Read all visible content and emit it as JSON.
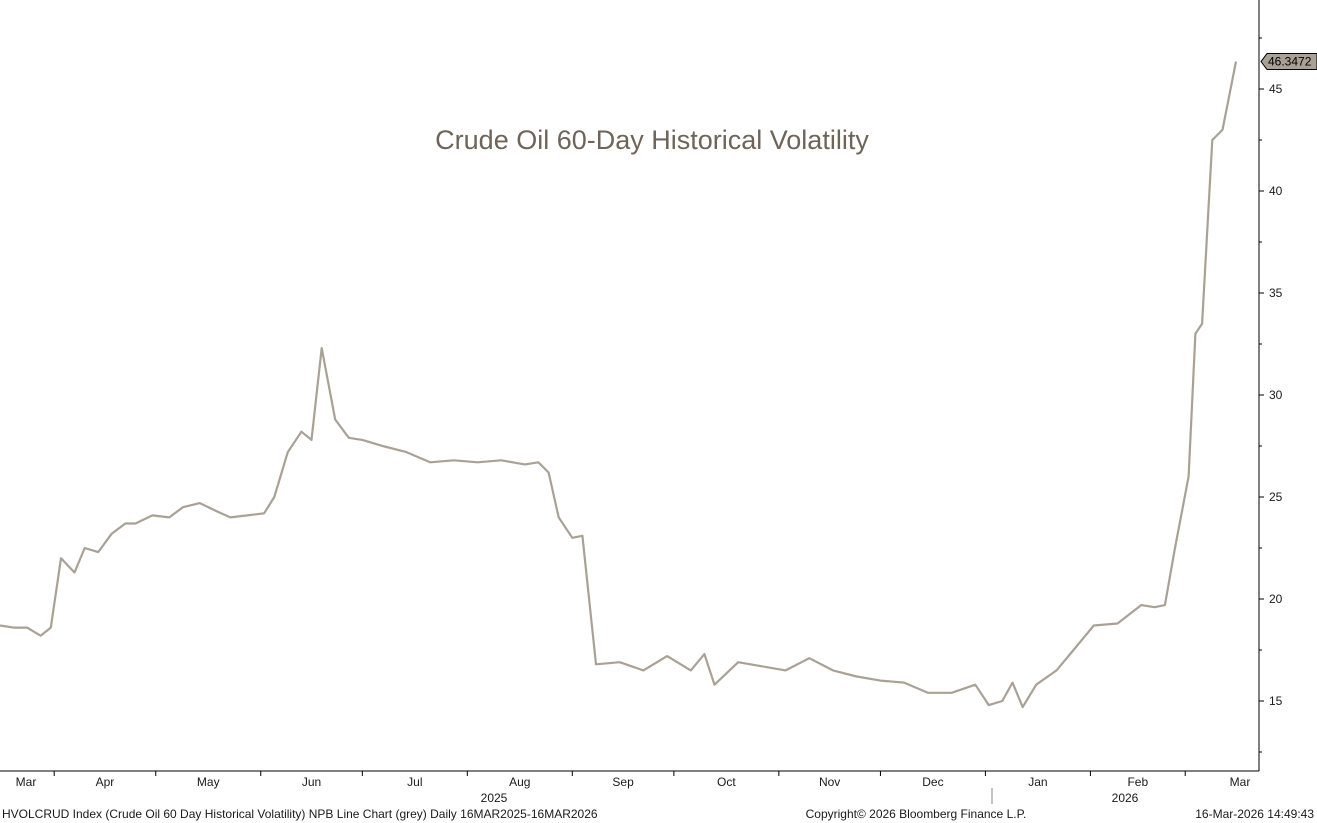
{
  "chart_data": {
    "type": "line",
    "title": "Crude Oil 60-Day Historical Volatility",
    "ylim": [
      11.5,
      47.5
    ],
    "yticks": [
      15,
      20,
      25,
      30,
      35,
      40,
      45
    ],
    "y_tick_labels": [
      "15",
      "20",
      "25",
      "30",
      "35",
      "40",
      "45"
    ],
    "grid": false,
    "x_tick_labels": [
      "Mar",
      "Apr",
      "May",
      "Jun",
      "Jul",
      "Aug",
      "Sep",
      "Oct",
      "Nov",
      "Dec",
      "Jan",
      "Feb",
      "Mar"
    ],
    "year_labels": [
      "2025",
      "2026"
    ],
    "last_value_label": "46.3472",
    "line_color": "#aaa196",
    "series": [
      {
        "x": [
          "2025-03-16",
          "2025-03-20",
          "2025-03-24",
          "2025-03-28",
          "2025-03-31",
          "2025-04-03",
          "2025-04-07",
          "2025-04-10",
          "2025-04-14",
          "2025-04-18",
          "2025-04-22",
          "2025-04-25",
          "2025-04-30",
          "2025-05-05",
          "2025-05-09",
          "2025-05-14",
          "2025-05-19",
          "2025-05-23",
          "2025-05-28",
          "2025-06-02",
          "2025-06-05",
          "2025-06-09",
          "2025-06-13",
          "2025-06-16",
          "2025-06-19",
          "2025-06-23",
          "2025-06-27",
          "2025-07-01",
          "2025-07-07",
          "2025-07-14",
          "2025-07-21",
          "2025-07-28",
          "2025-08-04",
          "2025-08-11",
          "2025-08-18",
          "2025-08-22",
          "2025-08-25",
          "2025-08-28",
          "2025-09-01",
          "2025-09-04",
          "2025-09-08",
          "2025-09-15",
          "2025-09-22",
          "2025-09-29",
          "2025-10-06",
          "2025-10-10",
          "2025-10-13",
          "2025-10-20",
          "2025-10-27",
          "2025-11-03",
          "2025-11-10",
          "2025-11-17",
          "2025-11-24",
          "2025-12-01",
          "2025-12-08",
          "2025-12-15",
          "2025-12-22",
          "2025-12-29",
          "2026-01-02",
          "2026-01-06",
          "2026-01-09",
          "2026-01-12",
          "2026-01-16",
          "2026-01-22",
          "2026-01-27",
          "2026-02-02",
          "2026-02-09",
          "2026-02-16",
          "2026-02-20",
          "2026-02-23",
          "2026-02-26",
          "2026-03-02",
          "2026-03-04",
          "2026-03-06",
          "2026-03-09",
          "2026-03-12",
          "2026-03-16"
        ],
        "values": [
          18.7,
          18.6,
          18.6,
          18.2,
          18.6,
          22.0,
          21.3,
          22.5,
          22.3,
          23.2,
          23.7,
          23.7,
          24.1,
          24.0,
          24.5,
          24.7,
          24.3,
          24.0,
          24.1,
          24.2,
          25.0,
          27.2,
          28.2,
          27.8,
          32.3,
          28.8,
          27.9,
          27.8,
          27.5,
          27.2,
          26.7,
          26.8,
          26.7,
          26.8,
          26.6,
          26.7,
          26.2,
          24.0,
          23.0,
          23.1,
          16.8,
          16.9,
          16.5,
          17.2,
          16.5,
          17.3,
          15.8,
          16.9,
          16.7,
          16.5,
          17.1,
          16.5,
          16.2,
          16.0,
          15.9,
          15.4,
          15.4,
          15.8,
          14.8,
          15.0,
          15.9,
          14.7,
          15.8,
          16.5,
          17.5,
          18.7,
          18.8,
          19.7,
          19.6,
          19.7,
          22.5,
          26.0,
          33.0,
          33.5,
          42.5,
          43.0,
          46.3472
        ]
      }
    ]
  },
  "footer": {
    "left": "HVOLCRUD Index (Crude Oil 60 Day Historical Volatility) NPB Line Chart (grey) Daily 16MAR2025-16MAR2026",
    "center": "Copyright© 2026 Bloomberg Finance L.P.",
    "right": "16-Mar-2026 14:49:43"
  }
}
